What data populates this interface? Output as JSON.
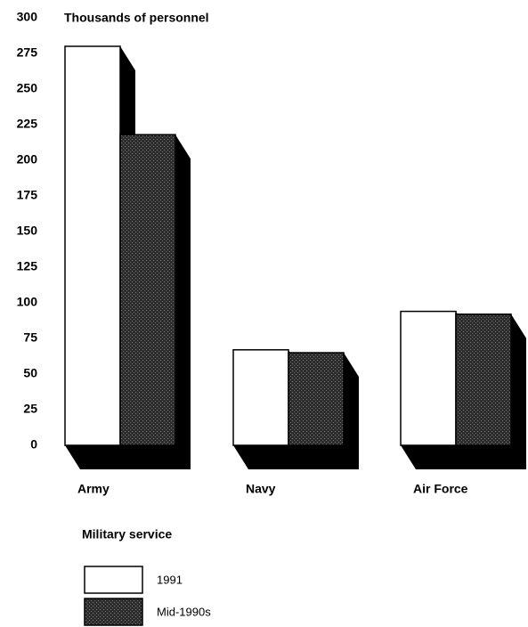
{
  "chart_data": {
    "type": "bar3d",
    "title": "Thousands of personnel",
    "x_label": "Military service",
    "categories": [
      "Army",
      "Navy",
      "Air Force"
    ],
    "series": [
      {
        "name": "1991",
        "color": "#ffffff",
        "values": [
          280,
          67,
          94
        ]
      },
      {
        "name": "Mid-1990s",
        "color": "#2e2e2e",
        "values": [
          218,
          65,
          92
        ]
      }
    ],
    "ylim": [
      0,
      300
    ],
    "yticks": [
      0,
      25,
      50,
      75,
      100,
      125,
      150,
      175,
      200,
      225,
      250,
      275,
      300
    ],
    "grid": false
  }
}
